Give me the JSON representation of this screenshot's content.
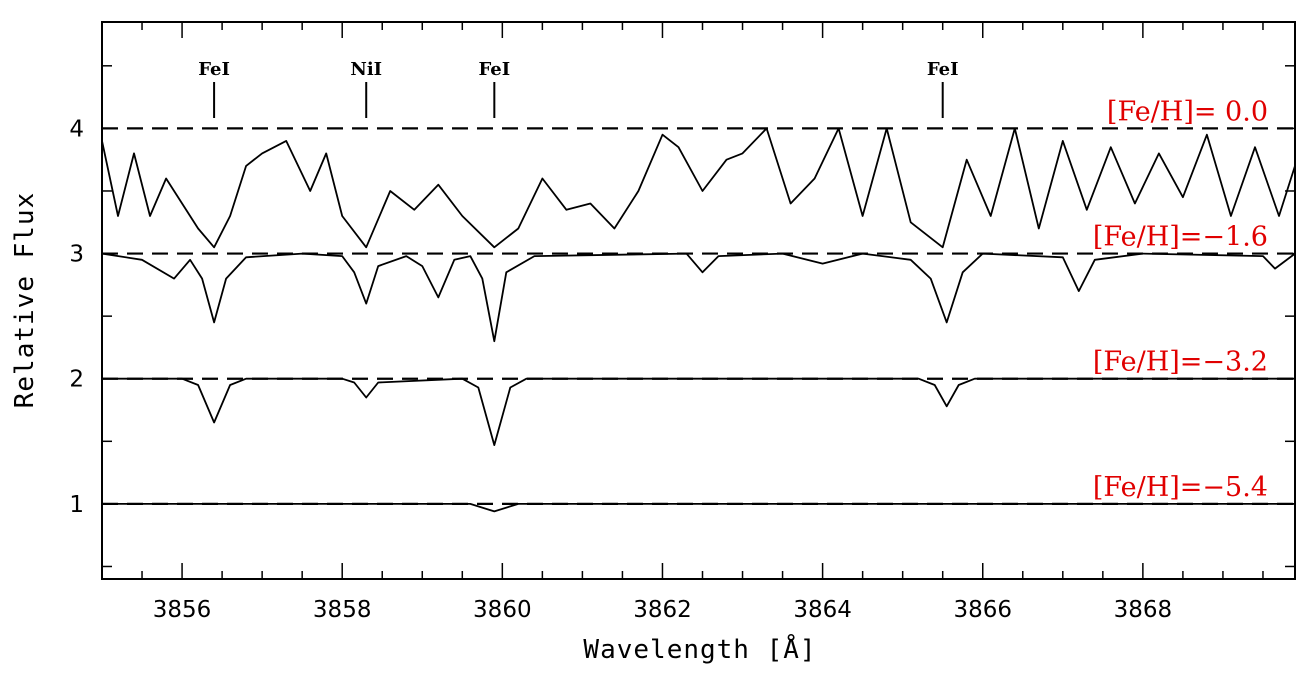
{
  "chart_data": {
    "type": "line",
    "title": "",
    "xlabel": "Wavelength [Å]",
    "ylabel": "Relative Flux",
    "xlim": [
      3855.0,
      3869.9
    ],
    "ylim": [
      0.4,
      4.85
    ],
    "xticks_major": [
      3856,
      3858,
      3860,
      3862,
      3864,
      3866,
      3868
    ],
    "yticks_major": [
      1,
      2,
      3,
      4
    ],
    "label_color": "#e00000",
    "line_ids": [
      {
        "label": "FeI",
        "wavelength": 3856.4
      },
      {
        "label": "NiI",
        "wavelength": 3858.3
      },
      {
        "label": "FeI",
        "wavelength": 3859.9
      },
      {
        "label": "FeI",
        "wavelength": 3865.5
      }
    ],
    "series": [
      {
        "label": "[Fe/H]=  0.0",
        "continuum": 4.0,
        "x": [
          3855.0,
          3855.2,
          3855.4,
          3855.6,
          3855.8,
          3856.0,
          3856.2,
          3856.4,
          3856.6,
          3856.8,
          3857.0,
          3857.3,
          3857.6,
          3857.8,
          3858.0,
          3858.3,
          3858.6,
          3858.9,
          3859.2,
          3859.5,
          3859.9,
          3860.2,
          3860.5,
          3860.8,
          3861.1,
          3861.4,
          3861.7,
          3862.0,
          3862.2,
          3862.5,
          3862.8,
          3863.0,
          3863.3,
          3863.6,
          3863.9,
          3864.2,
          3864.5,
          3864.8,
          3865.1,
          3865.5,
          3865.8,
          3866.1,
          3866.4,
          3866.7,
          3867.0,
          3867.3,
          3867.6,
          3867.9,
          3868.2,
          3868.5,
          3868.8,
          3869.1,
          3869.4,
          3869.7,
          3869.9
        ],
        "y": [
          3.9,
          3.3,
          3.8,
          3.3,
          3.6,
          3.4,
          3.2,
          3.05,
          3.3,
          3.7,
          3.8,
          3.9,
          3.5,
          3.8,
          3.3,
          3.05,
          3.5,
          3.35,
          3.55,
          3.3,
          3.05,
          3.2,
          3.6,
          3.35,
          3.4,
          3.2,
          3.5,
          3.95,
          3.85,
          3.5,
          3.75,
          3.8,
          4.0,
          3.4,
          3.6,
          4.0,
          3.3,
          4.0,
          3.25,
          3.05,
          3.75,
          3.3,
          4.0,
          3.2,
          3.9,
          3.35,
          3.85,
          3.4,
          3.8,
          3.45,
          3.95,
          3.3,
          3.85,
          3.3,
          3.7
        ]
      },
      {
        "label": "[Fe/H]=−1.6",
        "continuum": 3.0,
        "x": [
          3855.0,
          3855.5,
          3855.9,
          3856.1,
          3856.25,
          3856.4,
          3856.55,
          3856.8,
          3857.5,
          3858.0,
          3858.15,
          3858.3,
          3858.45,
          3858.8,
          3859.0,
          3859.2,
          3859.4,
          3859.6,
          3859.75,
          3859.9,
          3860.05,
          3860.4,
          3862.3,
          3862.5,
          3862.7,
          3863.5,
          3864.0,
          3864.5,
          3865.1,
          3865.35,
          3865.55,
          3865.75,
          3866.0,
          3867.0,
          3867.2,
          3867.4,
          3868.0,
          3869.5,
          3869.65,
          3869.9
        ],
        "y": [
          3.0,
          2.95,
          2.8,
          2.95,
          2.8,
          2.45,
          2.8,
          2.97,
          3.0,
          2.98,
          2.85,
          2.6,
          2.9,
          2.98,
          2.9,
          2.65,
          2.95,
          2.98,
          2.8,
          2.3,
          2.85,
          2.98,
          3.0,
          2.85,
          2.98,
          3.0,
          2.92,
          3.0,
          2.95,
          2.8,
          2.45,
          2.85,
          3.0,
          2.97,
          2.7,
          2.95,
          3.0,
          2.98,
          2.88,
          3.0
        ]
      },
      {
        "label": "[Fe/H]=−3.2",
        "continuum": 2.0,
        "x": [
          3855.0,
          3856.0,
          3856.2,
          3856.4,
          3856.6,
          3856.8,
          3858.0,
          3858.15,
          3858.3,
          3858.45,
          3859.5,
          3859.7,
          3859.9,
          3860.1,
          3860.3,
          3865.2,
          3865.4,
          3865.55,
          3865.7,
          3865.9,
          3869.9
        ],
        "y": [
          2.0,
          2.0,
          1.95,
          1.65,
          1.95,
          2.0,
          2.0,
          1.97,
          1.85,
          1.97,
          2.0,
          1.93,
          1.47,
          1.93,
          2.0,
          2.0,
          1.95,
          1.78,
          1.95,
          2.0,
          2.0
        ]
      },
      {
        "label": "[Fe/H]=−5.4",
        "continuum": 1.0,
        "x": [
          3855.0,
          3859.6,
          3859.9,
          3860.2,
          3869.9
        ],
        "y": [
          1.0,
          1.0,
          0.94,
          1.0,
          1.0
        ]
      }
    ]
  }
}
